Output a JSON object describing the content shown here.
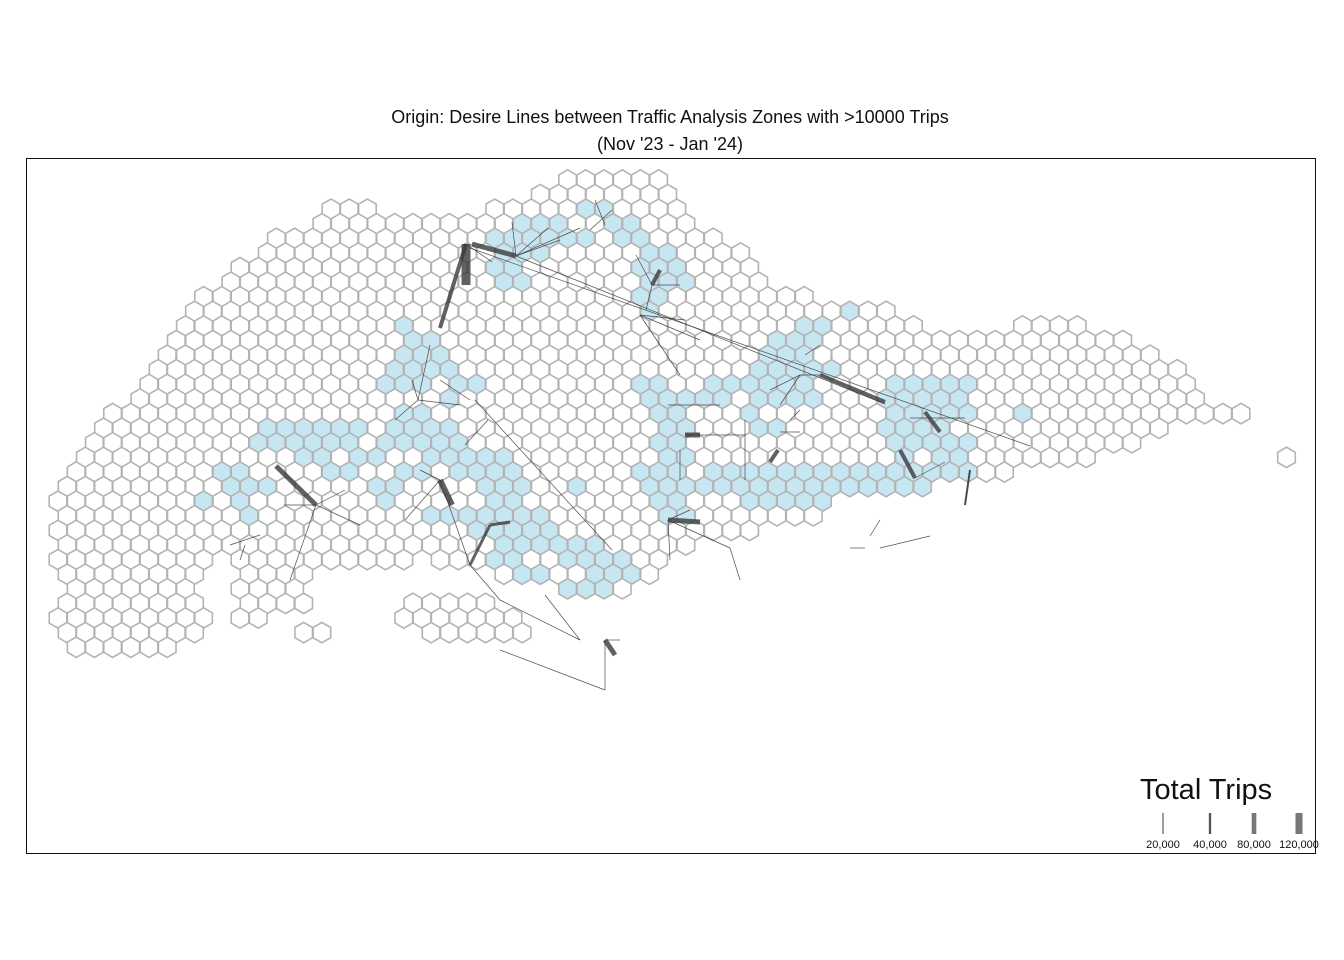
{
  "title": {
    "line1": "Origin: Desire Lines between Traffic Analysis Zones with >10000 Trips",
    "line2": "(Nov '23 - Jan '24)"
  },
  "legend": {
    "title": "Total Trips",
    "items": [
      {
        "label": "20,000",
        "value": 20000
      },
      {
        "label": "40,000",
        "value": 40000
      },
      {
        "label": "80,000",
        "value": 80000
      },
      {
        "label": "120,000",
        "value": 120000
      }
    ]
  },
  "colors": {
    "hex_outline": "#b3b3b3",
    "hex_active_fill": "#c6e6f2",
    "desire_line": "#3a3a3a",
    "frame": "#111111"
  }
}
